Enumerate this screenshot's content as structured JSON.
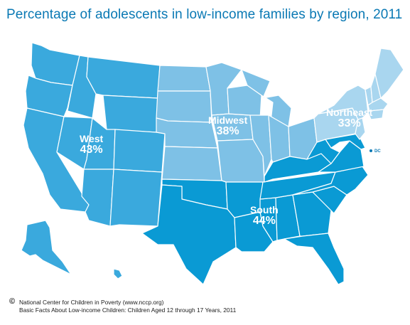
{
  "title": "Percentage of adolescents in low-income families by region, 2011",
  "colors": {
    "west": "#3aa9dd",
    "midwest": "#7ec1e6",
    "northeast": "#a9d6ef",
    "south": "#0a9ad4",
    "border": "#ffffff",
    "title": "#0a79b4"
  },
  "regions": [
    {
      "name": "West",
      "percent": "43%"
    },
    {
      "name": "Midwest",
      "percent": "38%"
    },
    {
      "name": "Northeast",
      "percent": "33%"
    },
    {
      "name": "South",
      "percent": "44%"
    }
  ],
  "dc_label": "DC",
  "footer": {
    "copyright": "©",
    "source": "National Center for Children in Poverty (www.nccp.org)",
    "publication": "Basic Facts About Low-income Children: Children Aged 12 through 17 Years, 2011"
  }
}
